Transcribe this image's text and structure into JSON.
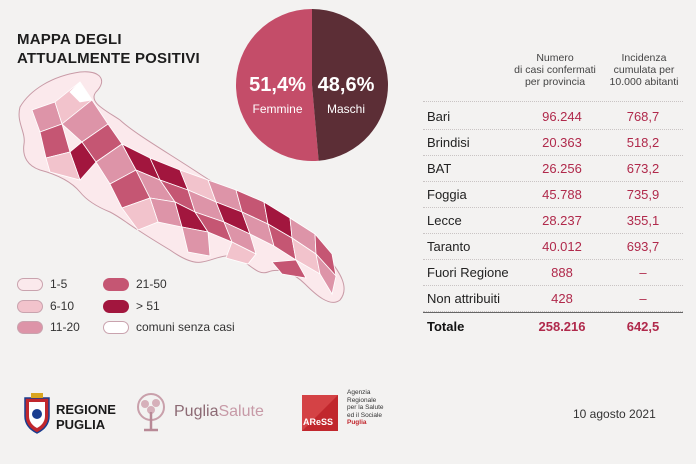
{
  "title": {
    "line1": "MAPPA DEGLI",
    "line2": "ATTUALMENTE POSITIVI"
  },
  "pie": {
    "female": {
      "pct": "51,4%",
      "label": "Femmine",
      "value": 51.4,
      "color": "#c44d69"
    },
    "male": {
      "pct": "48,6%",
      "label": "Maschi",
      "value": 48.6,
      "color": "#5c2e36"
    }
  },
  "columns": {
    "cases": [
      "Numero",
      "di casi confermati",
      "per provincia"
    ],
    "incidence": [
      "Incidenza",
      "cumulata per",
      "10.000 abitanti"
    ]
  },
  "table": {
    "rows": [
      {
        "name": "Bari",
        "cases": "96.244",
        "incidence": "768,7"
      },
      {
        "name": "Brindisi",
        "cases": "20.363",
        "incidence": "518,2"
      },
      {
        "name": "BAT",
        "cases": "26.256",
        "incidence": "673,2"
      },
      {
        "name": "Foggia",
        "cases": "45.788",
        "incidence": "735,9"
      },
      {
        "name": "Lecce",
        "cases": "28.237",
        "incidence": "355,1"
      },
      {
        "name": "Taranto",
        "cases": "40.012",
        "incidence": "693,7"
      },
      {
        "name": "Fuori Regione",
        "cases": "888",
        "incidence": "–"
      },
      {
        "name": "Non attribuiti",
        "cases": "428",
        "incidence": "–"
      }
    ],
    "total": {
      "name": "Totale",
      "cases": "258.216",
      "incidence": "642,5"
    }
  },
  "legend": [
    {
      "label": "1-5",
      "color": "#fbe9ec"
    },
    {
      "label": "6-10",
      "color": "#f2c3cc"
    },
    {
      "label": "11-20",
      "color": "#dd94a8"
    },
    {
      "label": "21-50",
      "color": "#c55673"
    },
    {
      "label": "> 51",
      "color": "#a2163e"
    },
    {
      "label": "comuni senza casi",
      "color": "#ffffff"
    }
  ],
  "logos": {
    "regione": [
      "REGIONE",
      "PUGLIA"
    ],
    "puglia_salute": {
      "a": "Puglia",
      "b": "Salute"
    },
    "aress_mark": "AReSS",
    "aress_text": [
      "Agenzia",
      "Regionale",
      "per la Salute",
      "ed il Sociale",
      "Puglia"
    ]
  },
  "date": "10 agosto 2021"
}
